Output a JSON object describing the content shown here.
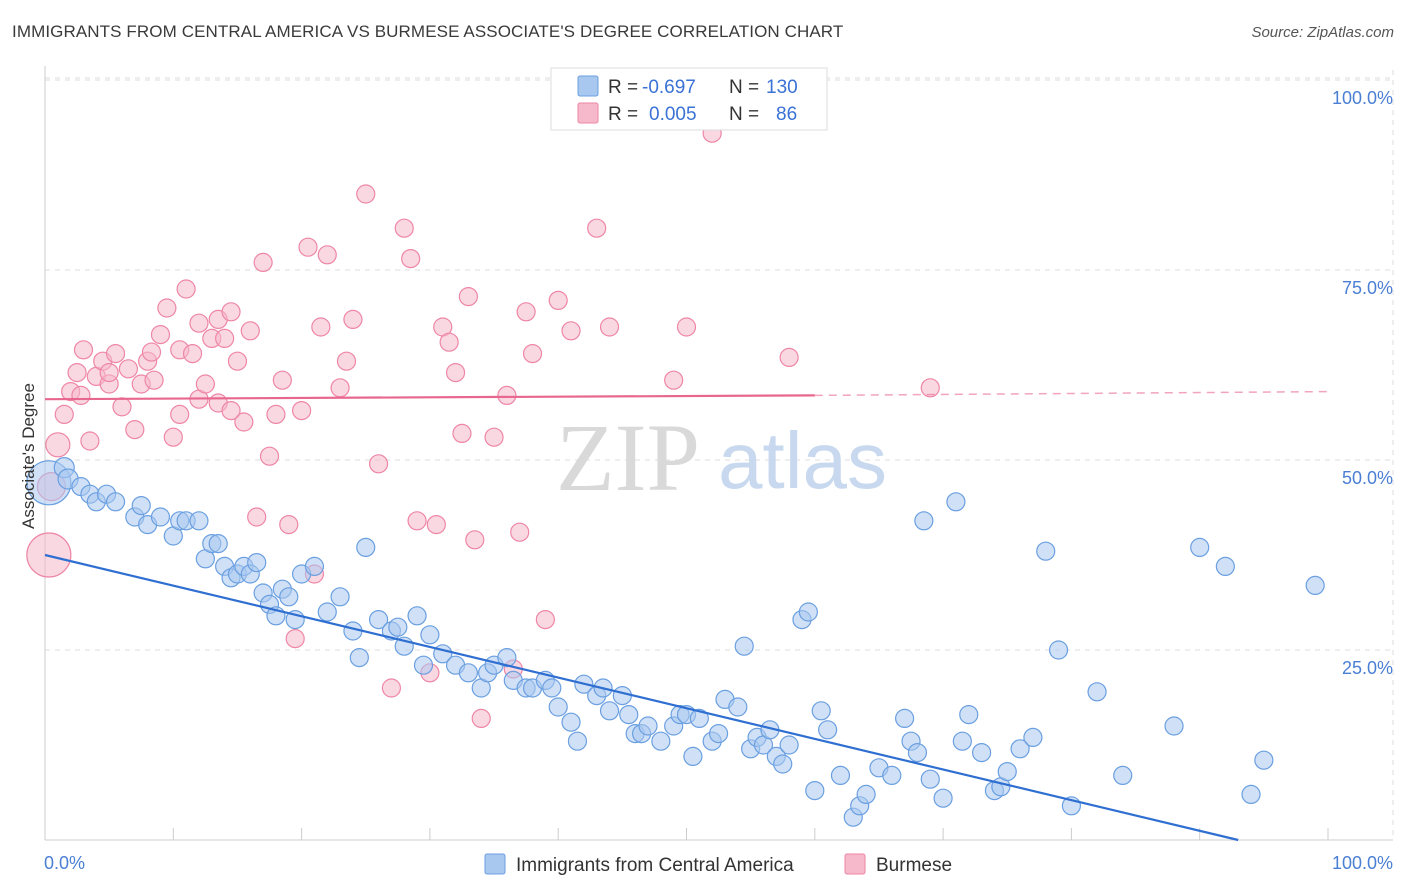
{
  "header": {
    "title": "IMMIGRANTS FROM CENTRAL AMERICA VS BURMESE ASSOCIATE'S DEGREE CORRELATION CHART",
    "source": "Source: ZipAtlas.com"
  },
  "watermark": {
    "zip": "ZIP",
    "atlas": "atlas"
  },
  "colors": {
    "blue": "#a9c8f0",
    "blue_stroke": "#6a9fe0",
    "blue_line": "#2f6fd1",
    "pink": "#f6b8cb",
    "pink_stroke": "#ee86a6",
    "pink_line": "#e8678f",
    "grid": "#dddddd",
    "axis_text": "#4a7fd4"
  },
  "legend": {
    "rows": [
      {
        "r_label": "R =",
        "r_value": "-0.697",
        "n_label": "N =",
        "n_value": "130",
        "series": "blue"
      },
      {
        "r_label": "R =",
        "r_value": "0.005",
        "n_label": "N =",
        "n_value": "86",
        "series": "pink"
      }
    ]
  },
  "bottom_legend": [
    {
      "label": "Immigrants from Central America",
      "series": "blue"
    },
    {
      "label": "Burmese",
      "series": "pink"
    }
  ],
  "chart_data": {
    "type": "scatter",
    "title": "IMMIGRANTS FROM CENTRAL AMERICA VS BURMESE ASSOCIATE'S DEGREE CORRELATION CHART",
    "xlabel": "",
    "ylabel": "Associate's Degree",
    "xlim": [
      0,
      100
    ],
    "ylim": [
      0,
      100
    ],
    "x_tick_labels": [
      "0.0%",
      "100.0%"
    ],
    "y_tick_labels": [
      "25.0%",
      "50.0%",
      "75.0%",
      "100.0%"
    ],
    "y_tick_values": [
      25,
      50,
      75,
      100
    ],
    "legend_position": "top-center",
    "series": [
      {
        "name": "Immigrants from Central America",
        "color": "blue",
        "R": -0.697,
        "N": 130,
        "trend": {
          "x": [
            0,
            93
          ],
          "y": [
            37.5,
            0
          ],
          "style": "solid"
        },
        "points": [
          [
            0.3,
            47,
            22
          ],
          [
            1.5,
            49,
            10
          ],
          [
            1.8,
            47.5,
            10
          ],
          [
            2.8,
            46.5,
            9
          ],
          [
            3.5,
            45.5,
            9
          ],
          [
            4,
            44.5,
            9
          ],
          [
            4.8,
            45.5,
            9
          ],
          [
            5.5,
            44.5,
            9
          ],
          [
            7,
            42.5,
            9
          ],
          [
            7.5,
            44,
            9
          ],
          [
            8,
            41.5,
            9
          ],
          [
            9,
            42.5,
            9
          ],
          [
            10,
            40,
            9
          ],
          [
            10.5,
            42,
            9
          ],
          [
            11,
            42,
            9
          ],
          [
            12,
            42,
            9
          ],
          [
            12.5,
            37,
            9
          ],
          [
            13,
            39,
            9
          ],
          [
            13.5,
            39,
            9
          ],
          [
            14,
            36,
            9
          ],
          [
            14.5,
            34.5,
            9
          ],
          [
            15,
            35,
            9
          ],
          [
            15.5,
            36,
            9
          ],
          [
            16,
            35,
            9
          ],
          [
            16.5,
            36.5,
            9
          ],
          [
            17,
            32.5,
            9
          ],
          [
            17.5,
            31,
            9
          ],
          [
            18,
            29.5,
            9
          ],
          [
            18.5,
            33,
            9
          ],
          [
            19,
            32,
            9
          ],
          [
            19.5,
            29,
            9
          ],
          [
            20,
            35,
            9
          ],
          [
            21,
            36,
            9
          ],
          [
            22,
            30,
            9
          ],
          [
            23,
            32,
            9
          ],
          [
            24,
            27.5,
            9
          ],
          [
            24.5,
            24,
            9
          ],
          [
            25,
            38.5,
            9
          ],
          [
            26,
            29,
            9
          ],
          [
            27,
            27.5,
            9
          ],
          [
            27.5,
            28,
            9
          ],
          [
            28,
            25.5,
            9
          ],
          [
            29,
            29.5,
            9
          ],
          [
            29.5,
            23,
            9
          ],
          [
            30,
            27,
            9
          ],
          [
            31,
            24.5,
            9
          ],
          [
            32,
            23,
            9
          ],
          [
            33,
            22,
            9
          ],
          [
            34,
            20,
            9
          ],
          [
            34.5,
            22,
            9
          ],
          [
            35,
            23,
            9
          ],
          [
            36,
            24,
            9
          ],
          [
            36.5,
            21,
            9
          ],
          [
            37.5,
            20,
            9
          ],
          [
            38,
            20,
            9
          ],
          [
            39,
            21,
            9
          ],
          [
            39.5,
            20,
            9
          ],
          [
            40,
            17.5,
            9
          ],
          [
            41,
            15.5,
            9
          ],
          [
            41.5,
            13,
            9
          ],
          [
            42,
            20.5,
            9
          ],
          [
            43,
            19,
            9
          ],
          [
            43.5,
            20,
            9
          ],
          [
            44,
            17,
            9
          ],
          [
            45,
            19,
            9
          ],
          [
            45.5,
            16.5,
            9
          ],
          [
            46,
            14,
            9
          ],
          [
            46.5,
            14,
            9
          ],
          [
            47,
            15,
            9
          ],
          [
            48,
            13,
            9
          ],
          [
            49,
            15,
            9
          ],
          [
            49.5,
            16.5,
            9
          ],
          [
            50,
            16.5,
            9
          ],
          [
            50.5,
            11,
            9
          ],
          [
            51,
            16,
            9
          ],
          [
            52,
            13,
            9
          ],
          [
            52.5,
            14,
            9
          ],
          [
            53,
            18.5,
            9
          ],
          [
            54,
            17.5,
            9
          ],
          [
            54.5,
            25.5,
            9
          ],
          [
            55,
            12,
            9
          ],
          [
            55.5,
            13.5,
            9
          ],
          [
            56,
            12.5,
            9
          ],
          [
            56.5,
            14.5,
            9
          ],
          [
            57,
            11,
            9
          ],
          [
            57.5,
            10,
            9
          ],
          [
            58,
            12.5,
            9
          ],
          [
            59,
            29,
            9
          ],
          [
            59.5,
            30,
            9
          ],
          [
            60,
            6.5,
            9
          ],
          [
            60.5,
            17,
            9
          ],
          [
            61,
            14.5,
            9
          ],
          [
            62,
            8.5,
            9
          ],
          [
            63,
            3,
            9
          ],
          [
            63.5,
            4.5,
            9
          ],
          [
            64,
            6,
            9
          ],
          [
            65,
            9.5,
            9
          ],
          [
            66,
            8.5,
            9
          ],
          [
            67,
            16,
            9
          ],
          [
            67.5,
            13,
            9
          ],
          [
            68,
            11.5,
            9
          ],
          [
            69,
            8,
            9
          ],
          [
            70,
            5.5,
            9
          ],
          [
            71,
            44.5,
            9
          ],
          [
            71.5,
            13,
            9
          ],
          [
            72,
            16.5,
            9
          ],
          [
            73,
            11.5,
            9
          ],
          [
            74,
            6.5,
            9
          ],
          [
            74.5,
            7,
            9
          ],
          [
            75,
            9,
            9
          ],
          [
            76,
            12,
            9
          ],
          [
            77,
            13.5,
            9
          ],
          [
            78,
            38,
            9
          ],
          [
            79,
            25,
            9
          ],
          [
            80,
            4.5,
            9
          ],
          [
            82,
            19.5,
            9
          ],
          [
            90,
            38.5,
            9
          ],
          [
            92,
            36,
            9
          ],
          [
            94,
            6,
            9
          ],
          [
            95,
            10.5,
            9
          ],
          [
            99,
            33.5,
            9
          ],
          [
            84,
            8.5,
            9
          ],
          [
            88,
            15,
            9
          ],
          [
            68.5,
            42,
            9
          ]
        ]
      },
      {
        "name": "Burmese",
        "color": "pink",
        "R": 0.005,
        "N": 86,
        "trend": {
          "x": [
            0,
            60
          ],
          "y": [
            58,
            58.5
          ],
          "style": "solid",
          "dashed_to": [
            100,
            59
          ]
        },
        "points": [
          [
            0.3,
            37.5,
            22
          ],
          [
            0.5,
            46.5,
            14
          ],
          [
            1,
            52,
            12
          ],
          [
            1.5,
            56,
            9
          ],
          [
            2,
            59,
            9
          ],
          [
            2.5,
            61.5,
            9
          ],
          [
            3,
            64.5,
            9
          ],
          [
            3.5,
            52.5,
            9
          ],
          [
            4,
            61,
            9
          ],
          [
            4.5,
            63,
            9
          ],
          [
            5,
            60,
            9
          ],
          [
            5.5,
            64,
            9
          ],
          [
            6,
            57,
            9
          ],
          [
            6.5,
            62,
            9
          ],
          [
            7,
            54,
            9
          ],
          [
            7.5,
            60,
            9
          ],
          [
            8,
            63,
            9
          ],
          [
            8.5,
            60.5,
            9
          ],
          [
            9,
            66.5,
            9
          ],
          [
            9.5,
            70,
            9
          ],
          [
            10,
            53,
            9
          ],
          [
            10.5,
            64.5,
            9
          ],
          [
            11,
            72.5,
            9
          ],
          [
            11.5,
            64,
            9
          ],
          [
            12,
            58,
            9
          ],
          [
            12.5,
            60,
            9
          ],
          [
            13,
            66,
            9
          ],
          [
            13.5,
            68.5,
            9
          ],
          [
            14,
            66,
            9
          ],
          [
            14.5,
            69.5,
            9
          ],
          [
            15,
            63,
            9
          ],
          [
            15.5,
            55,
            9
          ],
          [
            16,
            67,
            9
          ],
          [
            16.5,
            42.5,
            9
          ],
          [
            17,
            76,
            9
          ],
          [
            17.5,
            50.5,
            9
          ],
          [
            18,
            56,
            9
          ],
          [
            18.5,
            60.5,
            9
          ],
          [
            19,
            41.5,
            9
          ],
          [
            19.5,
            26.5,
            9
          ],
          [
            20,
            56.5,
            9
          ],
          [
            20.5,
            78,
            9
          ],
          [
            21,
            35,
            9
          ],
          [
            21.5,
            67.5,
            9
          ],
          [
            22,
            77,
            9
          ],
          [
            23,
            59.5,
            9
          ],
          [
            23.5,
            63,
            9
          ],
          [
            24,
            68.5,
            9
          ],
          [
            25,
            85,
            9
          ],
          [
            26,
            49.5,
            9
          ],
          [
            27,
            20,
            9
          ],
          [
            28,
            80.5,
            9
          ],
          [
            28.5,
            76.5,
            9
          ],
          [
            29,
            42,
            9
          ],
          [
            30,
            22,
            9
          ],
          [
            30.5,
            41.5,
            9
          ],
          [
            31,
            67.5,
            9
          ],
          [
            31.5,
            65.5,
            9
          ],
          [
            32,
            61.5,
            9
          ],
          [
            32.5,
            53.5,
            9
          ],
          [
            33,
            71.5,
            9
          ],
          [
            33.5,
            39.5,
            9
          ],
          [
            34,
            16,
            9
          ],
          [
            35,
            53,
            9
          ],
          [
            36,
            58.5,
            9
          ],
          [
            36.5,
            22.5,
            9
          ],
          [
            37,
            40.5,
            9
          ],
          [
            37.5,
            69.5,
            9
          ],
          [
            38,
            64,
            9
          ],
          [
            39,
            29,
            9
          ],
          [
            40,
            71,
            9
          ],
          [
            41,
            67,
            9
          ],
          [
            43,
            80.5,
            9
          ],
          [
            44,
            67.5,
            9
          ],
          [
            49,
            60.5,
            9
          ],
          [
            50,
            67.5,
            9
          ],
          [
            52,
            93,
            9
          ],
          [
            58,
            63.5,
            9
          ],
          [
            69,
            59.5,
            9
          ],
          [
            13.5,
            57.5,
            9
          ],
          [
            14.5,
            56.5,
            9
          ],
          [
            10.5,
            56,
            9
          ],
          [
            5,
            61.5,
            9
          ],
          [
            2.8,
            58.5,
            9
          ],
          [
            8.3,
            64.2,
            9
          ],
          [
            12,
            68,
            9
          ]
        ]
      }
    ]
  }
}
